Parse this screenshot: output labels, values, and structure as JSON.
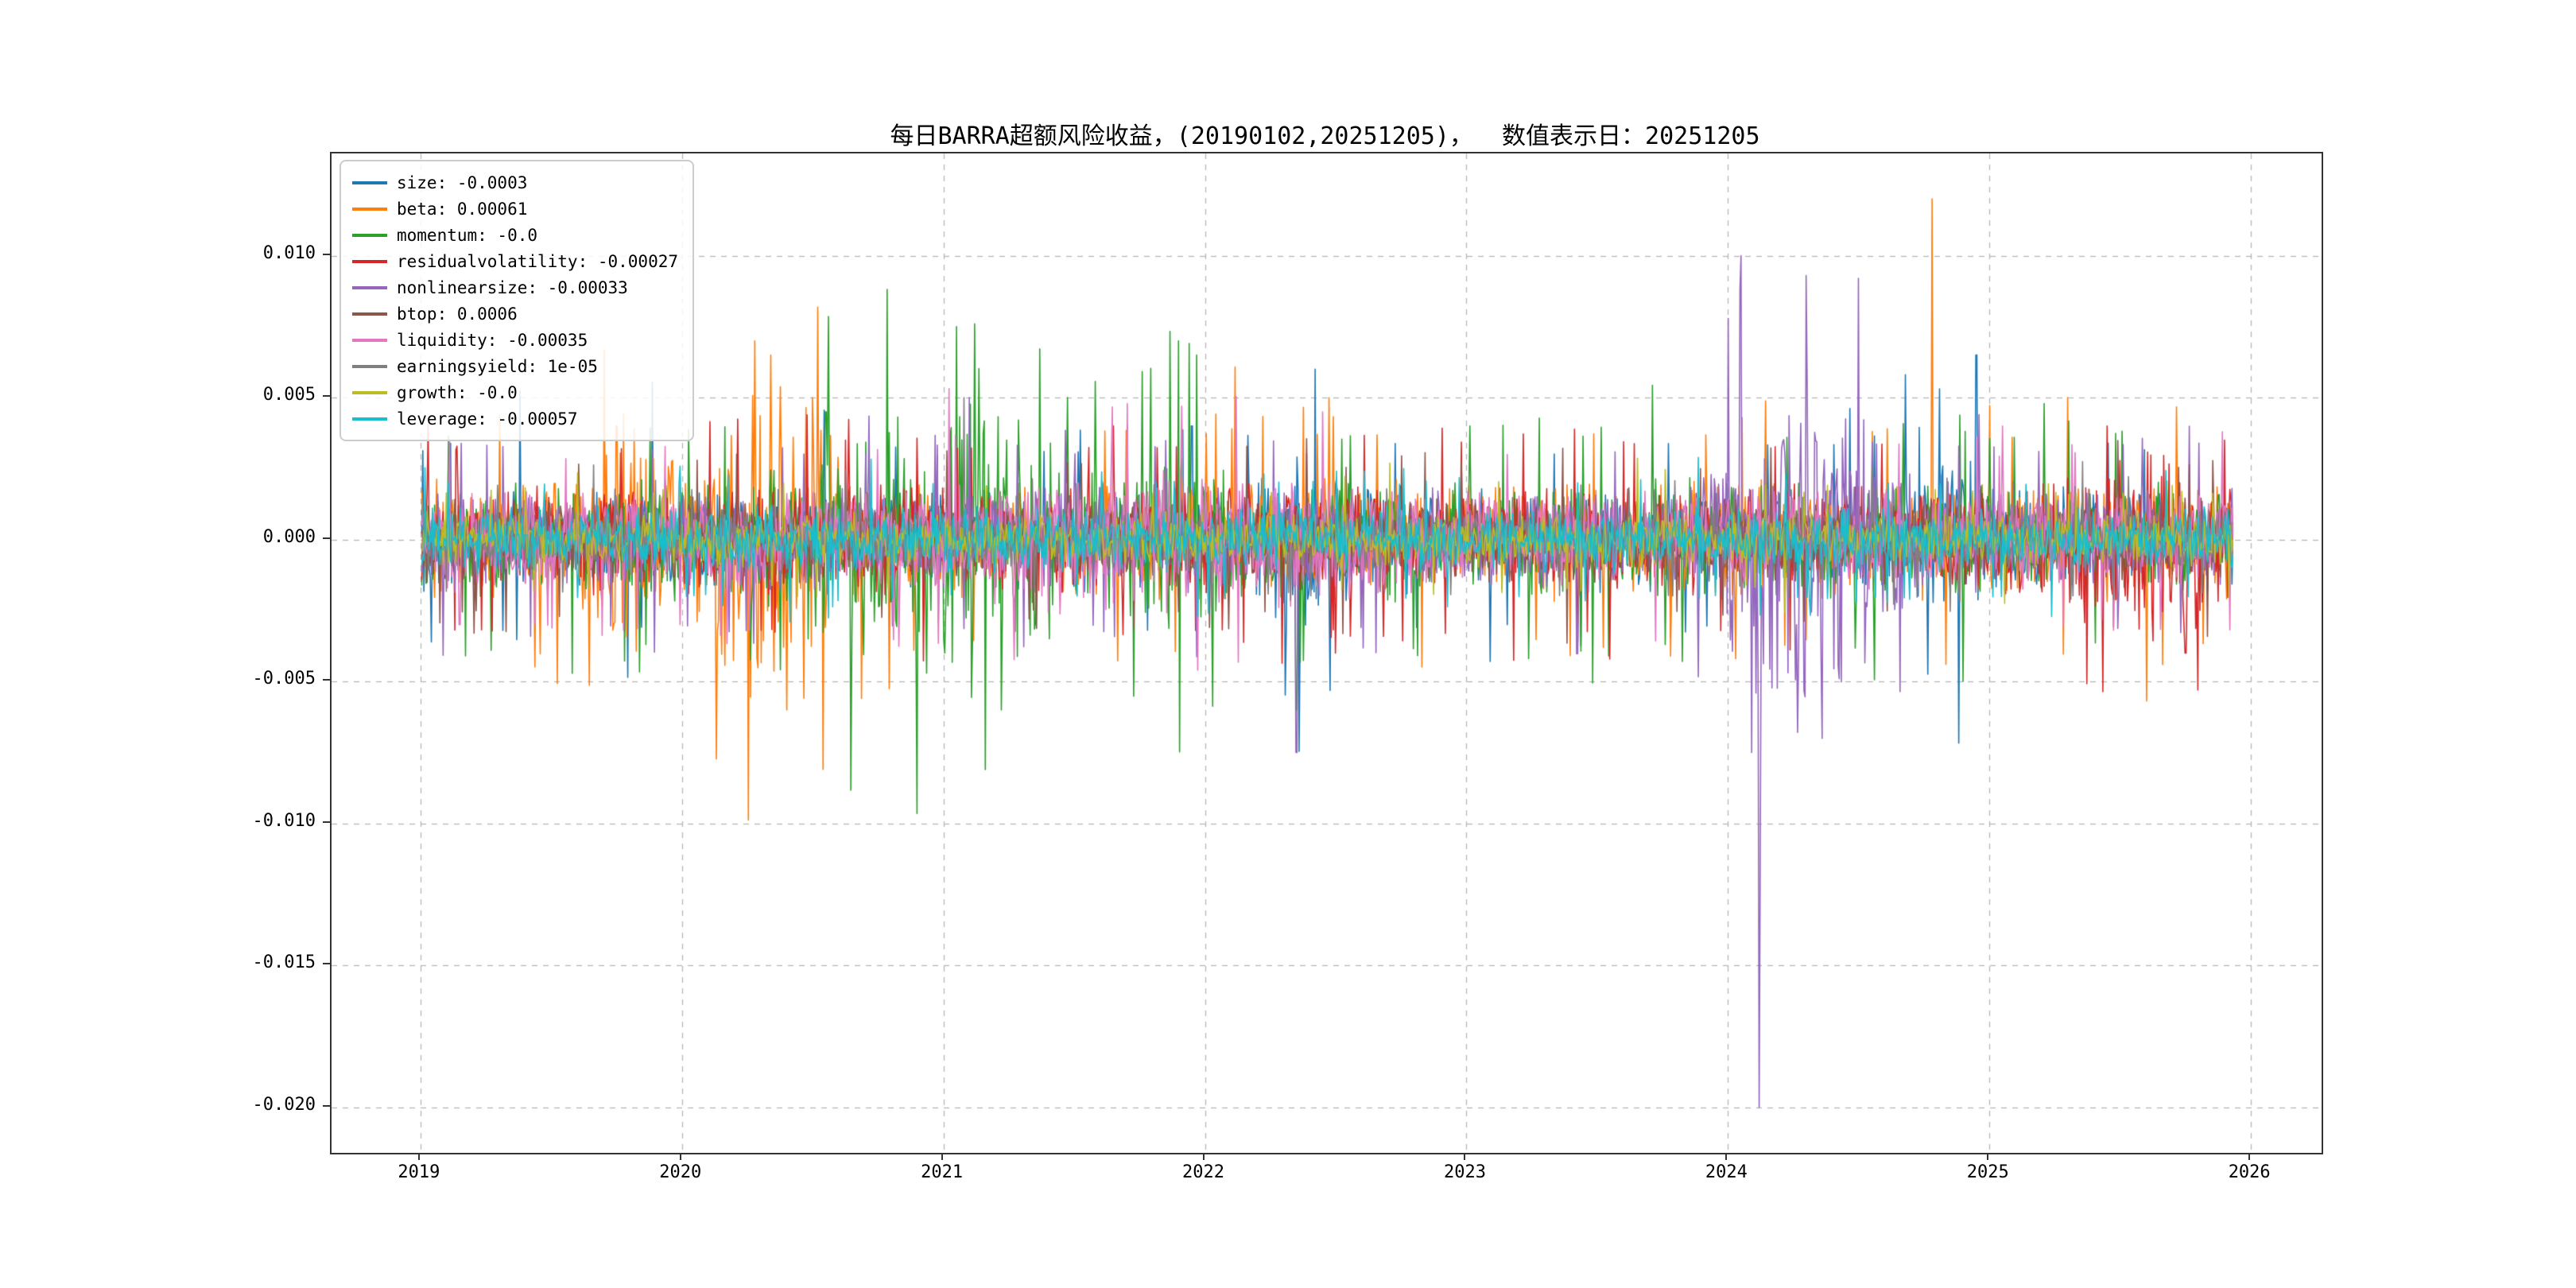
{
  "chart": {
    "title": "每日BARRA超额风险收益，(20190102,20251205)，  数值表示日：20251205"
  },
  "chart_data": {
    "type": "line",
    "title": "每日BARRA超额风险收益，(20190102,20251205)，  数值表示日：20251205",
    "xlabel": "",
    "ylabel": "",
    "xlim": [
      2018.66,
      2026.27
    ],
    "ylim": [
      -0.0216,
      0.0136
    ],
    "xticks": [
      2019,
      2020,
      2021,
      2022,
      2023,
      2024,
      2025,
      2026
    ],
    "xtick_labels": [
      "2019",
      "2020",
      "2021",
      "2022",
      "2023",
      "2024",
      "2025",
      "2026"
    ],
    "yticks": [
      0.01,
      0.005,
      0.0,
      -0.005,
      -0.01,
      -0.015,
      -0.02
    ],
    "ytick_labels": [
      "0.010",
      "0.005",
      "0.000",
      "-0.005",
      "-0.010",
      "-0.015",
      "-0.020"
    ],
    "grid": {
      "style": "dashed",
      "color": "#b5b5b5"
    },
    "legend_position": "upper-left",
    "x_start": 2019.005,
    "x_end": 2025.93,
    "points_per_year": 245,
    "series": [
      {
        "name": "size",
        "label": "size: -0.0003",
        "last_value": -0.0003,
        "color": "#1f77b4",
        "base_vol": 0.00085,
        "vol_bumps": [
          {
            "c": 2022.4,
            "w": 0.2,
            "a": 0.0007
          },
          {
            "c": 2024.9,
            "w": 0.15,
            "a": 0.0007
          }
        ],
        "spikes": [
          {
            "x": 2022.42,
            "y": 0.006
          },
          {
            "x": 2024.95,
            "y": 0.0065
          },
          {
            "x": 2021.95,
            "y": 0.004
          }
        ]
      },
      {
        "name": "beta",
        "label": "beta: 0.00061",
        "last_value": 0.00061,
        "color": "#ff7f0e",
        "base_vol": 0.001,
        "vol_bumps": [
          {
            "c": 2020.35,
            "w": 0.25,
            "a": 0.002
          },
          {
            "c": 2019.8,
            "w": 0.15,
            "a": 0.0012
          }
        ],
        "spikes": [
          {
            "x": 2019.75,
            "y": 0.004
          },
          {
            "x": 2020.28,
            "y": 0.007
          },
          {
            "x": 2020.34,
            "y": 0.0065
          },
          {
            "x": 2020.4,
            "y": -0.006
          },
          {
            "x": 2020.5,
            "y": 0.005
          },
          {
            "x": 2024.78,
            "y": 0.012
          },
          {
            "x": 2025.3,
            "y": 0.005
          }
        ]
      },
      {
        "name": "momentum",
        "label": "momentum: -0.0",
        "last_value": 0.0,
        "color": "#2ca02c",
        "base_vol": 0.001,
        "vol_bumps": [
          {
            "c": 2021.1,
            "w": 0.3,
            "a": 0.0018
          },
          {
            "c": 2020.6,
            "w": 0.2,
            "a": 0.001
          },
          {
            "c": 2021.9,
            "w": 0.15,
            "a": 0.001
          }
        ],
        "spikes": [
          {
            "x": 2020.55,
            "y": 0.0045
          },
          {
            "x": 2021.05,
            "y": 0.0075
          },
          {
            "x": 2021.12,
            "y": 0.0076
          },
          {
            "x": 2021.16,
            "y": -0.0081
          },
          {
            "x": 2021.22,
            "y": -0.006
          },
          {
            "x": 2021.9,
            "y": 0.007
          },
          {
            "x": 2022.35,
            "y": -0.006
          },
          {
            "x": 2024.9,
            "y": -0.005
          }
        ]
      },
      {
        "name": "residualvolatility",
        "label": "residualvolatility: -0.00027",
        "last_value": -0.00027,
        "color": "#d62728",
        "base_vol": 0.0009,
        "vol_bumps": [
          {
            "c": 2025.6,
            "w": 0.3,
            "a": 0.0008
          }
        ],
        "spikes": [
          {
            "x": 2021.65,
            "y": 0.004
          },
          {
            "x": 2022.5,
            "y": -0.004
          },
          {
            "x": 2025.45,
            "y": 0.004
          },
          {
            "x": 2025.75,
            "y": -0.004
          },
          {
            "x": 2025.9,
            "y": 0.0035
          }
        ]
      },
      {
        "name": "nonlinearsize",
        "label": "nonlinearsize: -0.00033",
        "last_value": -0.00033,
        "color": "#9467bd",
        "base_vol": 0.00085,
        "vol_bumps": [
          {
            "c": 2024.3,
            "w": 0.3,
            "a": 0.0025
          }
        ],
        "spikes": [
          {
            "x": 2021.1,
            "y": 0.005
          },
          {
            "x": 2022.35,
            "y": -0.0075
          },
          {
            "x": 2024.05,
            "y": 0.01
          },
          {
            "x": 2024.09,
            "y": -0.0075
          },
          {
            "x": 2024.12,
            "y": -0.02
          },
          {
            "x": 2024.3,
            "y": 0.0093
          },
          {
            "x": 2024.36,
            "y": -0.007
          },
          {
            "x": 2024.5,
            "y": 0.0092
          }
        ]
      },
      {
        "name": "btop",
        "label": "btop: 0.0006",
        "last_value": 0.0006,
        "color": "#8c564b",
        "base_vol": 0.0007,
        "vol_bumps": [],
        "spikes": []
      },
      {
        "name": "liquidity",
        "label": "liquidity: -0.00035",
        "last_value": -0.00035,
        "color": "#e377c2",
        "base_vol": 0.0008,
        "vol_bumps": [
          {
            "c": 2021.8,
            "w": 0.8,
            "a": 0.0005
          }
        ],
        "spikes": [
          {
            "x": 2019.15,
            "y": -0.003
          },
          {
            "x": 2022.45,
            "y": 0.0045
          },
          {
            "x": 2025.05,
            "y": 0.004
          }
        ]
      },
      {
        "name": "earningsyield",
        "label": "earningsyield: 1e-05",
        "last_value": 1e-05,
        "color": "#7f7f7f",
        "base_vol": 0.0005,
        "vol_bumps": [],
        "spikes": [
          {
            "x": 2021.08,
            "y": 0.005
          }
        ]
      },
      {
        "name": "growth",
        "label": "growth: -0.0",
        "last_value": 0.0,
        "color": "#bcbd22",
        "base_vol": 0.00045,
        "vol_bumps": [],
        "spikes": []
      },
      {
        "name": "leverage",
        "label": "leverage: -0.00057",
        "last_value": -0.00057,
        "color": "#17becf",
        "base_vol": 0.00055,
        "vol_bumps": [],
        "spikes": []
      }
    ]
  }
}
